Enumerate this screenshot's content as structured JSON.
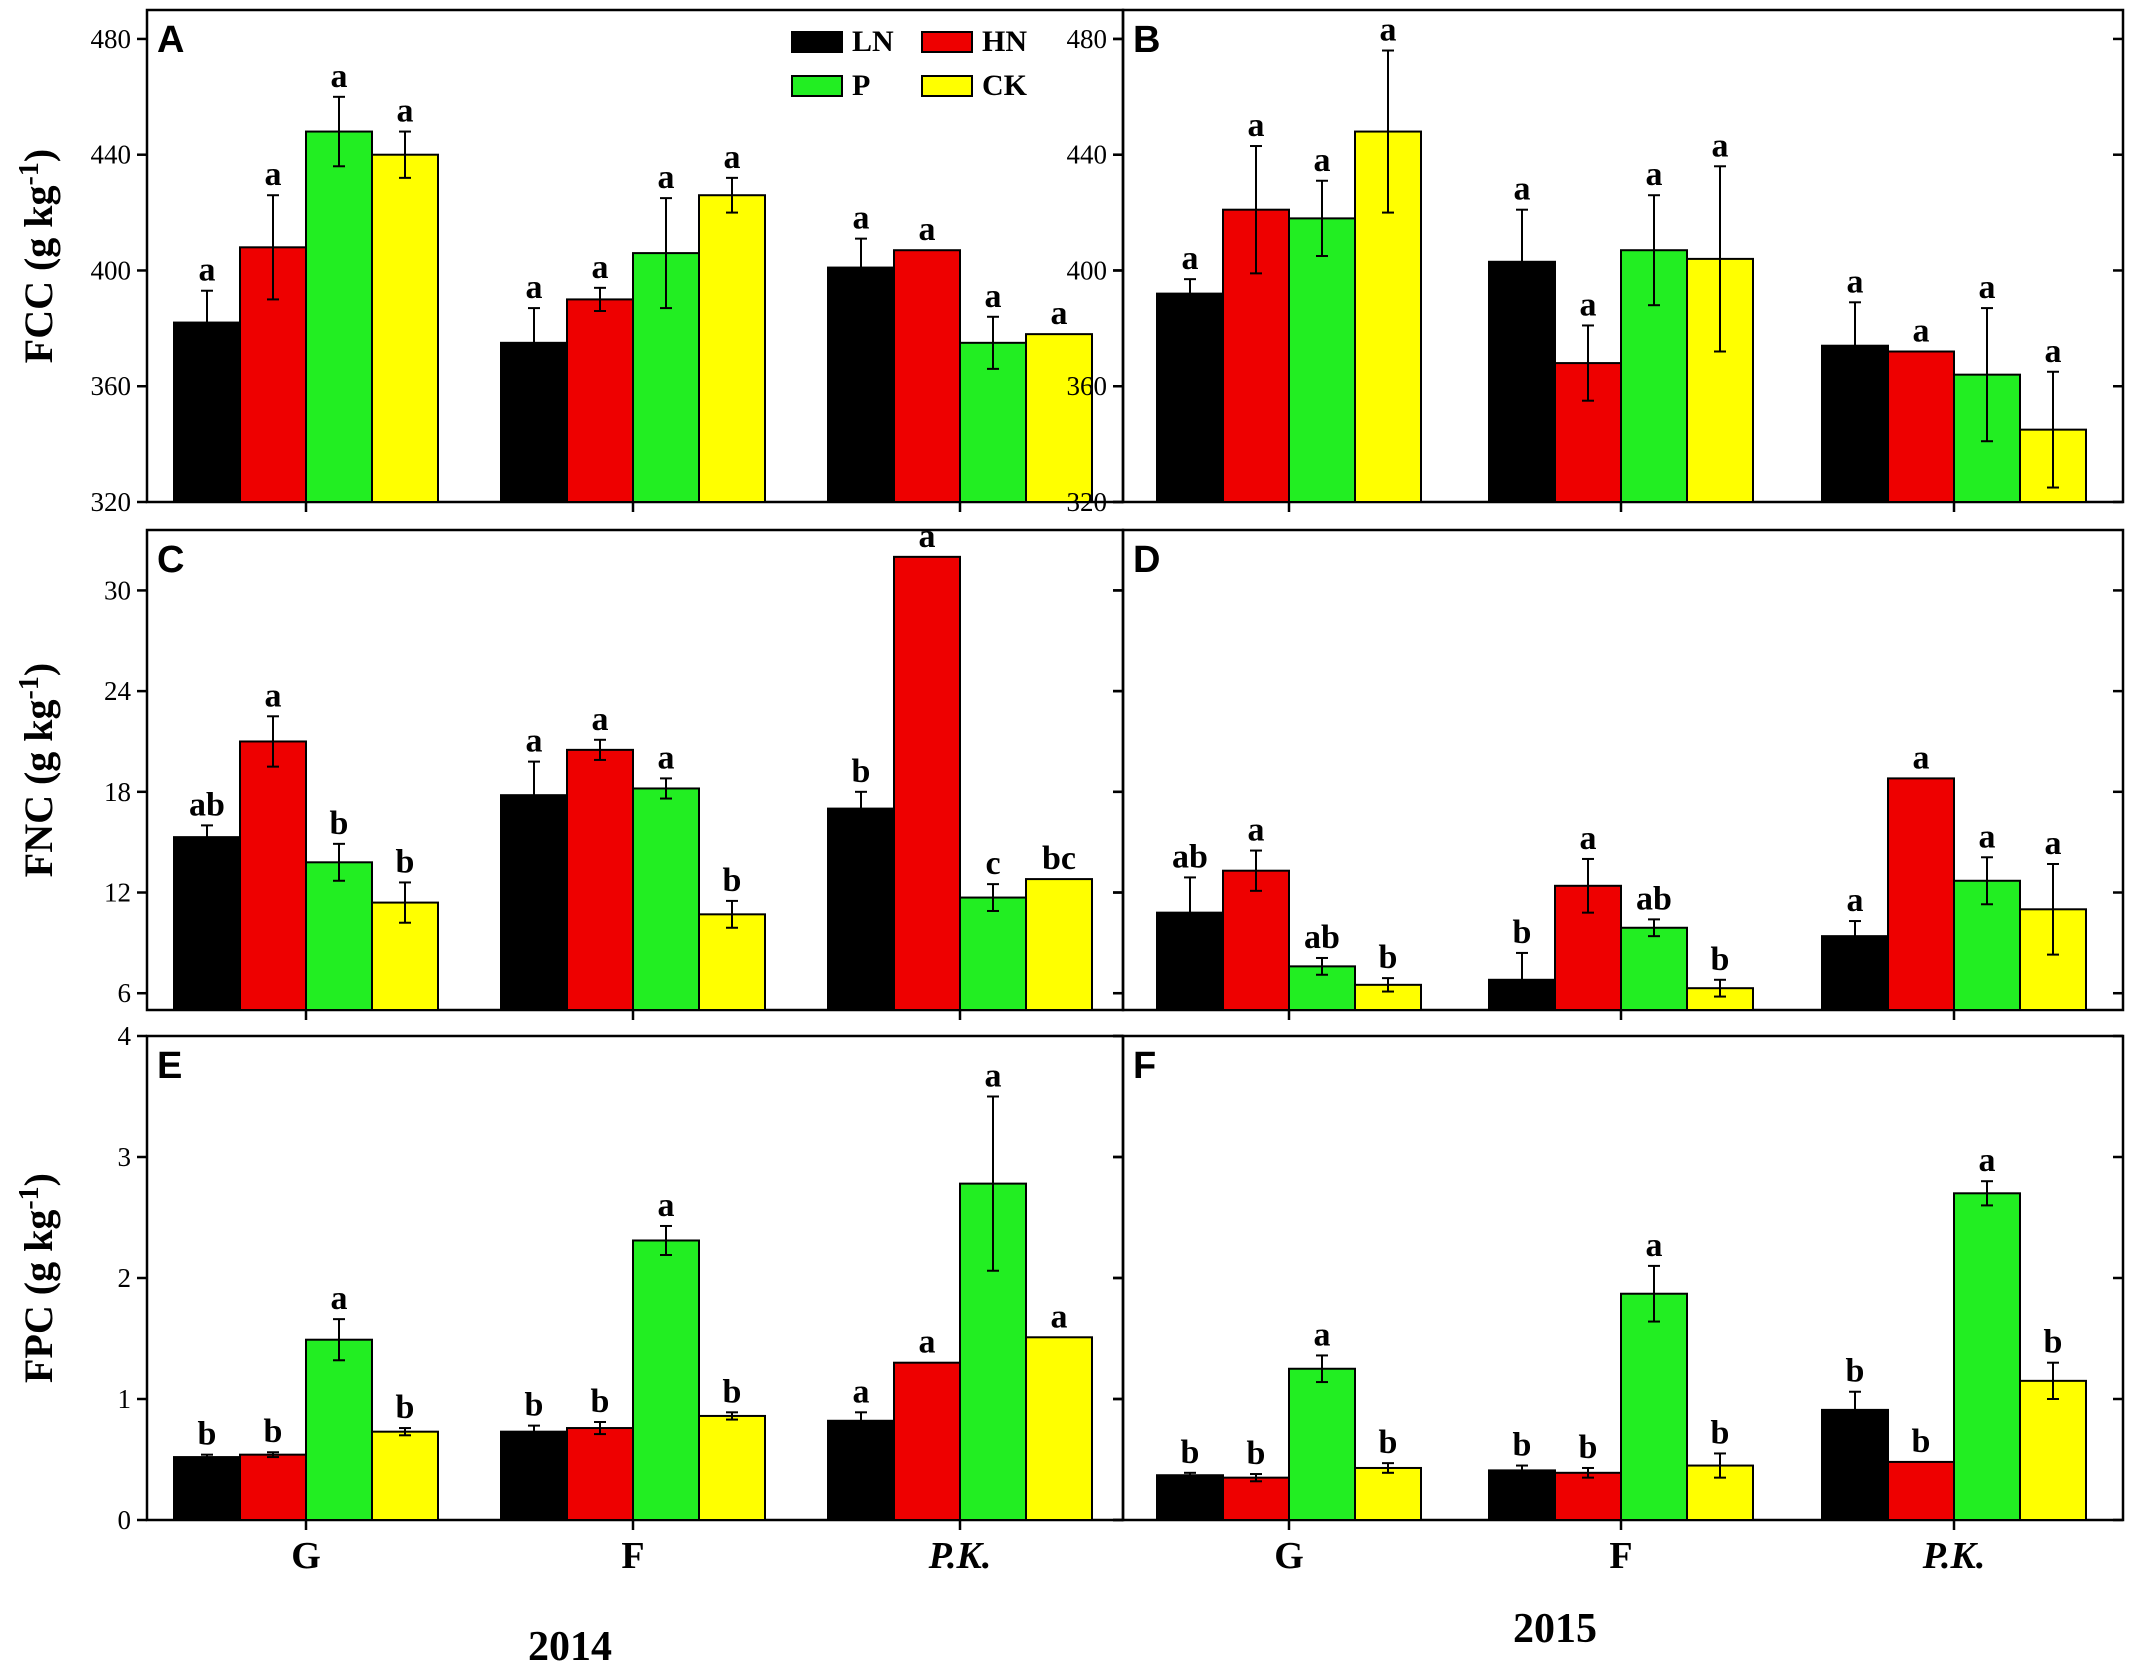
{
  "figure": {
    "years": [
      "2014",
      "2015"
    ],
    "categories": [
      "G",
      "F",
      "P.K."
    ],
    "legend": [
      {
        "name": "LN",
        "color": "#000000"
      },
      {
        "name": "HN",
        "color": "#ee0000"
      },
      {
        "name": "P",
        "color": "#22ee22"
      },
      {
        "name": "CK",
        "color": "#ffff00"
      }
    ],
    "unit_base": "g kg",
    "unit_exp": "-1"
  },
  "chart_data": [
    {
      "panel": "A",
      "type": "bar",
      "ylabel": "FCC",
      "ylim": [
        320,
        490
      ],
      "yticks": [
        320,
        360,
        400,
        440,
        480
      ],
      "tick_labels": [
        "320",
        "360",
        "400",
        "440",
        "480"
      ],
      "categories": [
        "G",
        "F",
        "P.K."
      ],
      "series": [
        {
          "name": "LN",
          "values": [
            382,
            375,
            401
          ],
          "errors": [
            11,
            12,
            10
          ],
          "labels": [
            "a",
            "a",
            "a"
          ]
        },
        {
          "name": "HN",
          "values": [
            408,
            390,
            407
          ],
          "errors": [
            18,
            4,
            0
          ],
          "labels": [
            "a",
            "a",
            "a"
          ]
        },
        {
          "name": "P",
          "values": [
            448,
            406,
            375
          ],
          "errors": [
            12,
            19,
            9
          ],
          "labels": [
            "a",
            "a",
            "a"
          ]
        },
        {
          "name": "CK",
          "values": [
            440,
            426,
            378
          ],
          "errors": [
            8,
            6,
            0
          ],
          "labels": [
            "a",
            "a",
            "a"
          ]
        }
      ]
    },
    {
      "panel": "B",
      "type": "bar",
      "ylabel": "FCC",
      "ylim": [
        320,
        490
      ],
      "yticks": [
        320,
        360,
        400,
        440,
        480
      ],
      "tick_labels": [
        "320",
        "360",
        "400",
        "440",
        "480"
      ],
      "categories": [
        "G",
        "F",
        "P.K."
      ],
      "series": [
        {
          "name": "LN",
          "values": [
            392,
            403,
            374
          ],
          "errors": [
            5,
            18,
            15
          ],
          "labels": [
            "a",
            "a",
            "a"
          ]
        },
        {
          "name": "HN",
          "values": [
            421,
            368,
            372
          ],
          "errors": [
            22,
            13,
            0
          ],
          "labels": [
            "a",
            "a",
            "a"
          ]
        },
        {
          "name": "P",
          "values": [
            418,
            407,
            364
          ],
          "errors": [
            13,
            19,
            23
          ],
          "labels": [
            "a",
            "a",
            "a"
          ]
        },
        {
          "name": "CK",
          "values": [
            448,
            404,
            345
          ],
          "errors": [
            28,
            32,
            20
          ],
          "labels": [
            "a",
            "a",
            "a"
          ]
        }
      ]
    },
    {
      "panel": "C",
      "type": "bar",
      "ylabel": "FNC",
      "ylim": [
        5,
        33.6
      ],
      "yticks": [
        6,
        12,
        18,
        24,
        30
      ],
      "tick_labels": [
        "6",
        "12",
        "18",
        "24",
        "30"
      ],
      "categories": [
        "G",
        "F",
        "P.K."
      ],
      "series": [
        {
          "name": "LN",
          "values": [
            15.3,
            17.8,
            17.0
          ],
          "errors": [
            0.7,
            2.0,
            1.0
          ],
          "labels": [
            "ab",
            "a",
            "b"
          ]
        },
        {
          "name": "HN",
          "values": [
            21.0,
            20.5,
            32.0
          ],
          "errors": [
            1.5,
            0.6,
            0
          ],
          "labels": [
            "a",
            "a",
            "a"
          ]
        },
        {
          "name": "P",
          "values": [
            13.8,
            18.2,
            11.7
          ],
          "errors": [
            1.1,
            0.6,
            0.8
          ],
          "labels": [
            "b",
            "a",
            "c"
          ]
        },
        {
          "name": "CK",
          "values": [
            11.4,
            10.7,
            12.8
          ],
          "errors": [
            1.2,
            0.8,
            0
          ],
          "labels": [
            "b",
            "b",
            "bc"
          ]
        }
      ]
    },
    {
      "panel": "D",
      "type": "bar",
      "ylabel": "FNC",
      "ylim": [
        5,
        33.6
      ],
      "yticks": [
        6,
        12,
        18,
        24,
        30
      ],
      "tick_labels": [
        "",
        "",
        "",
        "",
        ""
      ],
      "categories": [
        "G",
        "F",
        "P.K."
      ],
      "series": [
        {
          "name": "LN",
          "values": [
            10.8,
            6.8,
            9.4
          ],
          "errors": [
            2.1,
            1.6,
            0.9
          ],
          "labels": [
            "ab",
            "b",
            "a"
          ]
        },
        {
          "name": "HN",
          "values": [
            13.3,
            12.4,
            18.8
          ],
          "errors": [
            1.2,
            1.6,
            0
          ],
          "labels": [
            "a",
            "a",
            "a"
          ]
        },
        {
          "name": "P",
          "values": [
            7.6,
            9.9,
            12.7
          ],
          "errors": [
            0.5,
            0.5,
            1.4
          ],
          "labels": [
            "ab",
            "ab",
            "a"
          ]
        },
        {
          "name": "CK",
          "values": [
            6.5,
            6.3,
            11.0
          ],
          "errors": [
            0.4,
            0.5,
            2.7
          ],
          "labels": [
            "b",
            "b",
            "a"
          ]
        }
      ]
    },
    {
      "panel": "E",
      "type": "bar",
      "ylabel": "FPC",
      "ylim": [
        0,
        4
      ],
      "yticks": [
        0,
        1,
        2,
        3,
        4
      ],
      "tick_labels": [
        "0",
        "1",
        "2",
        "3",
        "4"
      ],
      "categories": [
        "G",
        "F",
        "P.K."
      ],
      "series": [
        {
          "name": "LN",
          "values": [
            0.52,
            0.73,
            0.82
          ],
          "errors": [
            0.02,
            0.05,
            0.07
          ],
          "labels": [
            "b",
            "b",
            "a"
          ]
        },
        {
          "name": "HN",
          "values": [
            0.54,
            0.76,
            1.3
          ],
          "errors": [
            0.02,
            0.05,
            0
          ],
          "labels": [
            "b",
            "b",
            "a"
          ]
        },
        {
          "name": "P",
          "values": [
            1.49,
            2.31,
            2.78
          ],
          "errors": [
            0.17,
            0.12,
            0.72
          ],
          "labels": [
            "a",
            "a",
            "a"
          ]
        },
        {
          "name": "CK",
          "values": [
            0.73,
            0.86,
            1.51
          ],
          "errors": [
            0.03,
            0.03,
            0
          ],
          "labels": [
            "b",
            "b",
            "a"
          ]
        }
      ]
    },
    {
      "panel": "F",
      "type": "bar",
      "ylabel": "FPC",
      "ylim": [
        0,
        4
      ],
      "yticks": [
        0,
        1,
        2,
        3,
        4
      ],
      "tick_labels": [
        "",
        "",
        "",
        "",
        ""
      ],
      "categories": [
        "G",
        "F",
        "P.K."
      ],
      "series": [
        {
          "name": "LN",
          "values": [
            0.37,
            0.41,
            0.91
          ],
          "errors": [
            0.02,
            0.04,
            0.15
          ],
          "labels": [
            "b",
            "b",
            "b"
          ]
        },
        {
          "name": "HN",
          "values": [
            0.35,
            0.39,
            0.48
          ],
          "errors": [
            0.03,
            0.04,
            0
          ],
          "labels": [
            "b",
            "b",
            "b"
          ]
        },
        {
          "name": "P",
          "values": [
            1.25,
            1.87,
            2.7
          ],
          "errors": [
            0.11,
            0.23,
            0.1
          ],
          "labels": [
            "a",
            "a",
            "a"
          ]
        },
        {
          "name": "CK",
          "values": [
            0.43,
            0.45,
            1.15
          ],
          "errors": [
            0.04,
            0.1,
            0.15
          ],
          "labels": [
            "b",
            "b",
            "b"
          ]
        }
      ]
    }
  ]
}
